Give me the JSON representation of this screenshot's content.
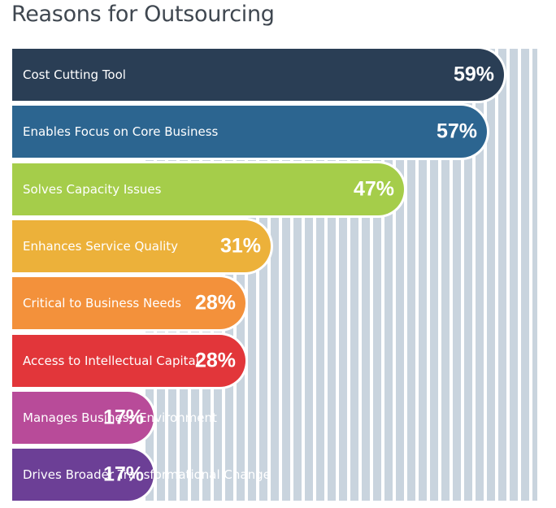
{
  "chart_data": {
    "type": "bar",
    "orientation": "horizontal",
    "title": "Reasons for Outsourcing",
    "categories": [
      "Cost Cutting Tool",
      "Enables Focus on Core Business",
      "Solves Capacity Issues",
      "Enhances Service Quality",
      "Critical to Business Needs",
      "Access to Intellectual Capital",
      "Manages Business Environment",
      "Drives Broader Transformational Change"
    ],
    "values": [
      59,
      57,
      47,
      31,
      28,
      28,
      17,
      17
    ],
    "value_labels": [
      "59%",
      "57%",
      "47%",
      "31%",
      "28%",
      "28%",
      "17%",
      "17%"
    ],
    "colors": [
      "#2a3e55",
      "#2c6590",
      "#a5cd4a",
      "#ecb13a",
      "#f3913b",
      "#e2363a",
      "#b84b99",
      "#6c3f96"
    ],
    "stripe_color": "#c9d4de",
    "grid": false,
    "legend": "none"
  }
}
